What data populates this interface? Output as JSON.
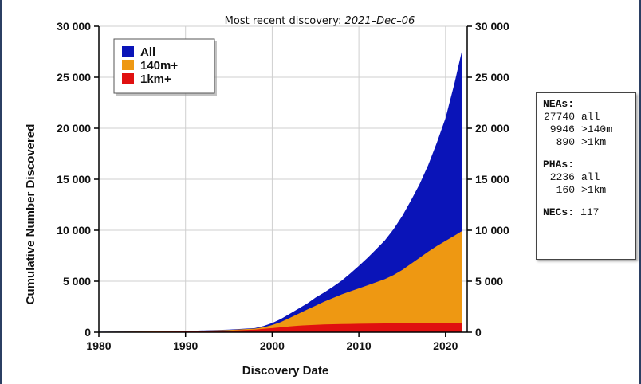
{
  "subtitle_prefix": "Most recent discovery: ",
  "subtitle_date": "2021–Dec–06",
  "chart_data": {
    "type": "area",
    "xlabel": "Discovery Date",
    "ylabel": "Cumulative Number Discovered",
    "xlim": [
      1980,
      2022.5
    ],
    "ylim": [
      0,
      30000
    ],
    "x_ticks": [
      1980,
      1990,
      2000,
      2010,
      2020
    ],
    "y_ticks": [
      0,
      5000,
      10000,
      15000,
      20000,
      25000,
      30000
    ],
    "y_tick_labels": [
      "0",
      "5 000",
      "10 000",
      "15 000",
      "20 000",
      "25 000",
      "30 000"
    ],
    "grid": true,
    "legend_position": "top-left",
    "x": [
      1980,
      1985,
      1990,
      1995,
      1998,
      1999,
      2000,
      2001,
      2002,
      2003,
      2004,
      2005,
      2006,
      2007,
      2008,
      2009,
      2010,
      2011,
      2012,
      2013,
      2014,
      2015,
      2016,
      2017,
      2018,
      2019,
      2020,
      2021,
      2021.93
    ],
    "series": [
      {
        "name": "All",
        "color": "#0a14b8",
        "values": [
          50,
          80,
          120,
          250,
          400,
          600,
          900,
          1300,
          1800,
          2300,
          2800,
          3400,
          3900,
          4450,
          5050,
          5750,
          6500,
          7300,
          8150,
          9000,
          10100,
          11400,
          12900,
          14500,
          16400,
          18600,
          21000,
          24300,
          27740
        ]
      },
      {
        "name": "140m+",
        "color": "#ee9812",
        "values": [
          40,
          70,
          100,
          220,
          350,
          480,
          700,
          1000,
          1400,
          1800,
          2200,
          2600,
          3000,
          3350,
          3700,
          4000,
          4300,
          4600,
          4900,
          5200,
          5600,
          6100,
          6700,
          7300,
          7900,
          8450,
          8950,
          9450,
          9946
        ]
      },
      {
        "name": "1km+",
        "color": "#e01010",
        "values": [
          30,
          50,
          80,
          150,
          250,
          330,
          400,
          480,
          560,
          630,
          690,
          730,
          760,
          780,
          800,
          815,
          830,
          840,
          850,
          858,
          865,
          870,
          875,
          878,
          881,
          884,
          886,
          888,
          890
        ]
      }
    ]
  },
  "stats": {
    "neas_label": "NEAs:",
    "neas": [
      {
        "num": "27740",
        "label": "all"
      },
      {
        "num": "9946",
        "label": ">140m"
      },
      {
        "num": "890",
        "label": ">1km"
      }
    ],
    "phas_label": "PHAs:",
    "phas": [
      {
        "num": "2236",
        "label": "all"
      },
      {
        "num": "160",
        "label": ">1km"
      }
    ],
    "necs_label": "NECs:",
    "necs_value": "117"
  }
}
